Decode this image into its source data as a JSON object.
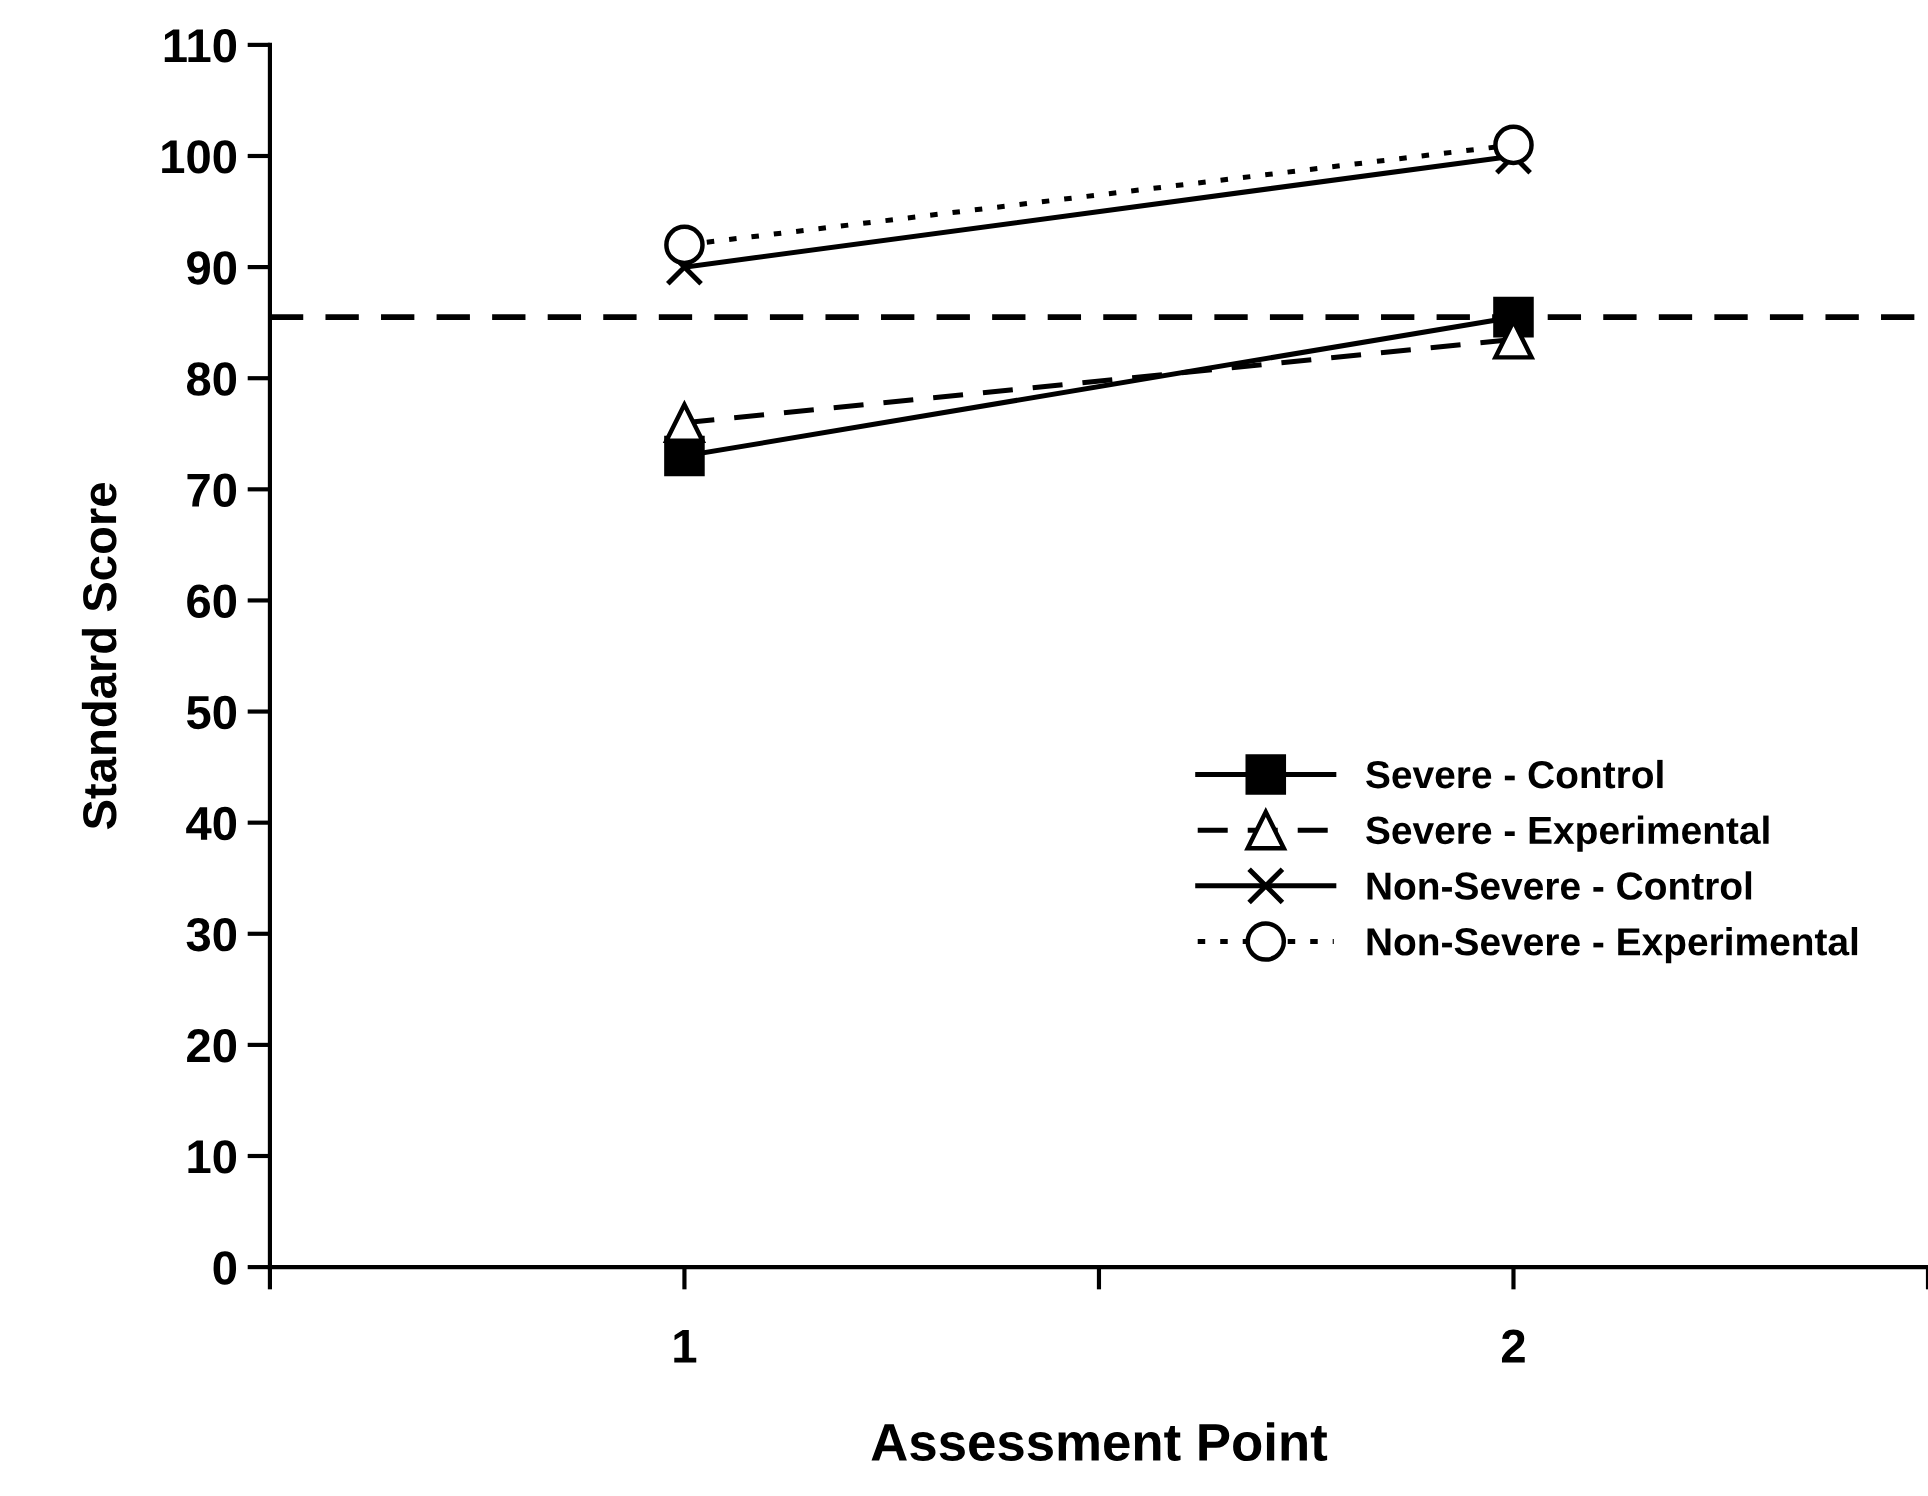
{
  "chart_data": {
    "type": "line",
    "xlabel": "Assessment Point",
    "ylabel": "Standard Score",
    "x": [
      1,
      2
    ],
    "xlim": [
      0.5,
      2.5
    ],
    "xticks": [
      {
        "value": 0.5,
        "label": null
      },
      1,
      {
        "value": 1.5,
        "label": null
      },
      2,
      {
        "value": 2.5,
        "label": null
      }
    ],
    "ylim": [
      0,
      110
    ],
    "yticks": [
      0,
      10,
      20,
      30,
      40,
      50,
      60,
      70,
      80,
      90,
      100,
      110
    ],
    "series": [
      {
        "name": "Severe - Control",
        "color": "#000000",
        "values": [
          73,
          85.5
        ],
        "marker": "square",
        "line_style": "solid"
      },
      {
        "name": "Severe - Experimental",
        "color": "#000000",
        "values": [
          76,
          83.5
        ],
        "marker": "triangle",
        "line_style": "dashed"
      },
      {
        "name": "Non-Severe - Control",
        "color": "#000000",
        "values": [
          90,
          100
        ],
        "marker": "cross",
        "line_style": "solid"
      },
      {
        "name": "Non-Severe - Experimental",
        "color": "#000000",
        "values": [
          92,
          101
        ],
        "marker": "circle",
        "line_style": "dotted"
      }
    ],
    "ref_lines": [
      {
        "axis": "y",
        "value": 85.5,
        "label": null,
        "color": "#000000",
        "line_style": "dashed"
      }
    ],
    "grid": false,
    "legend": "bottom right"
  }
}
